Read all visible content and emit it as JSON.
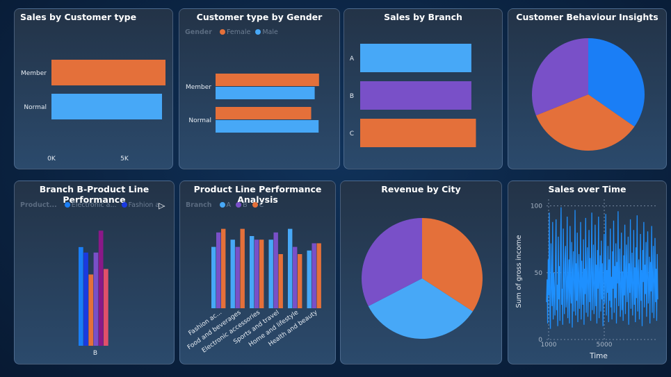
{
  "titles": {
    "sales_customer": "Sales by Customer type",
    "cust_gender": "Customer type by Gender",
    "sales_branch": "Sales by Branch",
    "behaviour": "Customer Behaviour Insights",
    "branch_b": "Branch B-Product Line Performance",
    "pl_perf": "Product Line Performance Analysis",
    "rev_city": "Revenue by City",
    "sales_time": "Sales over Time"
  },
  "legends": {
    "gender": {
      "title": "Gender",
      "items": [
        "Female",
        "Male"
      ]
    },
    "branch_b": {
      "title": "Product...",
      "items": [
        "Electronic a...",
        "Fashion a..."
      ]
    },
    "branch": {
      "title": "Branch",
      "items": [
        "A",
        "B",
        "C"
      ]
    }
  },
  "colors": {
    "orange": "#e4703a",
    "blue": "#47a8f7",
    "purple": "#7950c8",
    "deep_blue": "#1a7ef6",
    "navy": "#1a3ae0",
    "magenta": "#8a1888",
    "pink": "#e0506a",
    "sky": "#1e90ff"
  },
  "chart_data": [
    {
      "type": "bar",
      "orientation": "horizontal",
      "title": "Sales by Customer type",
      "categories": [
        "Member",
        "Normal"
      ],
      "values": [
        164000,
        159000
      ],
      "x_ticks": [
        "0K",
        "5K"
      ]
    },
    {
      "type": "bar",
      "orientation": "horizontal",
      "title": "Customer type by Gender",
      "categories": [
        "Member",
        "Normal"
      ],
      "series": [
        {
          "name": "Female",
          "values": [
            501,
            463
          ]
        },
        {
          "name": "Male",
          "values": [
            480,
            499
          ]
        }
      ]
    },
    {
      "type": "bar",
      "orientation": "horizontal",
      "title": "Sales by Branch",
      "categories": [
        "A",
        "B",
        "C"
      ],
      "values": [
        106200,
        106197,
        110568
      ]
    },
    {
      "type": "pie",
      "title": "Customer Behaviour Insights",
      "values": [
        34.7,
        34.2,
        31.1
      ]
    },
    {
      "type": "bar",
      "title": "Branch B-Product Line Performance",
      "categories": [
        "B"
      ],
      "series": [
        {
          "name": "Electronic a...",
          "values": [
            18
          ]
        },
        {
          "name": "Fashion a...",
          "values": [
            17
          ]
        },
        {
          "values": [
            13
          ]
        },
        {
          "values": [
            17
          ]
        },
        {
          "values": [
            21
          ]
        },
        {
          "values": [
            14
          ]
        },
        {
          "values": [
            20
          ]
        }
      ],
      "xlabel": "B"
    },
    {
      "type": "bar",
      "title": "Product Line Performance Analysis",
      "categories": [
        "Fashion ac...",
        "Food and beverages",
        "Electronic accessories",
        "Sports and travel",
        "Home and lifestyle",
        "Health and beauty"
      ],
      "series": [
        {
          "name": "A",
          "values": [
            17,
            19,
            20,
            19,
            22,
            16
          ]
        },
        {
          "name": "B",
          "values": [
            21,
            17,
            19,
            21,
            17,
            18
          ]
        },
        {
          "name": "C",
          "values": [
            22,
            22,
            19,
            15,
            15,
            18
          ]
        }
      ],
      "ylim": [
        0,
        25
      ]
    },
    {
      "type": "pie",
      "title": "Revenue by City",
      "values": [
        34.2,
        33.2,
        32.6
      ]
    },
    {
      "type": "line",
      "title": "Sales over Time",
      "xlabel": "Time",
      "ylabel": "Sum of gross income",
      "ylim": [
        0,
        105
      ],
      "y_ticks": [
        "0",
        "50",
        "100"
      ],
      "x_ticks": [
        "1000",
        "5000"
      ],
      "values": [
        28,
        45,
        12,
        60,
        33,
        95,
        20,
        8,
        72,
        40,
        25,
        88,
        15,
        50,
        36,
        18,
        62,
        90,
        22,
        41,
        10,
        77,
        30,
        55,
        14,
        68,
        99,
        26,
        38,
        11,
        83,
        47,
        19,
        58,
        70,
        24,
        31,
        92,
        16,
        44,
        60,
        12,
        85,
        35,
        27,
        73,
        9,
        52,
        66,
        21,
        40,
        97,
        18,
        57,
        29,
        80,
        13,
        48,
        64,
        23,
        37,
        88,
        15,
        59,
        42,
        26,
        75,
        11,
        53,
        34,
        91,
        20,
        46,
        69,
        17,
        39,
        82,
        28,
        61,
        14,
        50,
        95,
        22,
        43,
        71,
        19,
        33,
        86,
        25,
        56,
        12,
        67,
        38,
        92,
        16,
        48,
        63,
        21,
        74,
        30,
        57,
        10,
        45,
        79,
        27,
        40,
        94,
        18,
        52,
        35,
        70,
        13,
        60,
        29,
        83,
        24,
        47,
        15,
        66,
        38,
        89,
        20,
        55,
        31,
        72,
        12,
        58,
        42,
        96,
        25,
        44,
        68,
        17,
        36,
        80,
        22,
        51,
        14,
        63,
        33,
        86,
        19,
        49,
        71,
        28,
        40,
        77,
        11,
        57,
        35,
        90,
        23,
        46,
        65,
        18,
        38,
        82,
        26,
        54,
        13,
        69,
        31,
        93,
        21,
        48,
        60,
        15,
        37,
        79,
        29,
        52,
        10,
        67,
        43,
        88,
        24,
        56,
        34,
        73,
        17,
        45,
        81,
        27,
        39,
        62,
        12,
        58,
        36,
        85,
        20,
        47,
        70,
        16,
        41,
        76,
        28,
        53,
        14,
        64,
        30
      ]
    }
  ]
}
